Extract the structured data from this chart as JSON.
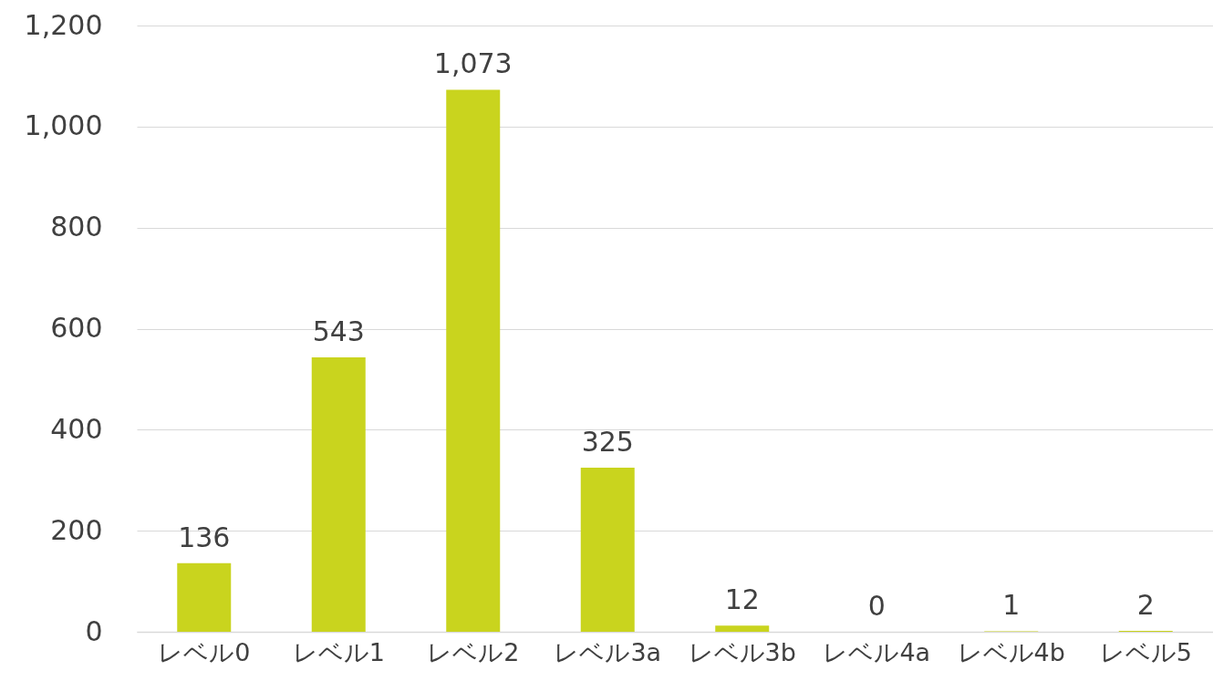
{
  "chart_data": {
    "type": "bar",
    "categories": [
      "レベル0",
      "レベル1",
      "レベル2",
      "レベル3a",
      "レベル3b",
      "レベル4a",
      "レベル4b",
      "レベル5"
    ],
    "values": [
      136,
      543,
      1073,
      325,
      12,
      0,
      1,
      2
    ],
    "value_labels": [
      "136",
      "543",
      "1,073",
      "325",
      "12",
      "0",
      "1",
      "2"
    ],
    "color": "#c9d41e",
    "ylim": [
      0,
      1200
    ],
    "yticks": [
      0,
      200,
      400,
      600,
      800,
      {
        "value": 1000,
        "label": "1,000"
      },
      {
        "value": 1200,
        "label": "1,200"
      }
    ],
    "grid": "y"
  }
}
